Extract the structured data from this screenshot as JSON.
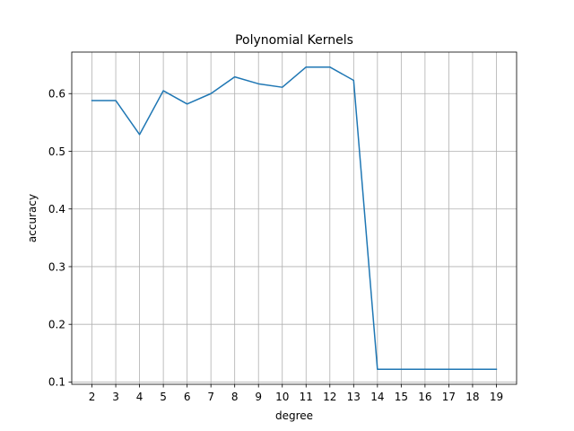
{
  "chart_data": {
    "type": "line",
    "title": "Polynomial Kernels",
    "xlabel": "degree",
    "ylabel": "accuracy",
    "x": [
      2,
      3,
      4,
      5,
      6,
      7,
      8,
      9,
      10,
      11,
      12,
      13,
      14,
      15,
      16,
      17,
      18,
      19
    ],
    "series": [
      {
        "values": [
          0.588,
          0.588,
          0.529,
          0.605,
          0.582,
          0.6,
          0.629,
          0.617,
          0.611,
          0.646,
          0.646,
          0.623,
          0.122,
          0.122,
          0.122,
          0.122,
          0.122,
          0.122
        ],
        "color": "#1f77b4"
      }
    ],
    "xlim": [
      1.15,
      19.85
    ],
    "ylim": [
      0.096,
      0.672
    ],
    "xticks": [
      2,
      3,
      4,
      5,
      6,
      7,
      8,
      9,
      10,
      11,
      12,
      13,
      14,
      15,
      16,
      17,
      18,
      19
    ],
    "xtick_labels": [
      "2",
      "3",
      "4",
      "5",
      "6",
      "7",
      "8",
      "9",
      "10",
      "11",
      "12",
      "13",
      "14",
      "15",
      "16",
      "17",
      "18",
      "19"
    ],
    "yticks": [
      0.1,
      0.2,
      0.3,
      0.4,
      0.5,
      0.6
    ],
    "ytick_labels": [
      "0.1",
      "0.2",
      "0.3",
      "0.4",
      "0.5",
      "0.6"
    ],
    "grid": true,
    "legend": "none"
  }
}
